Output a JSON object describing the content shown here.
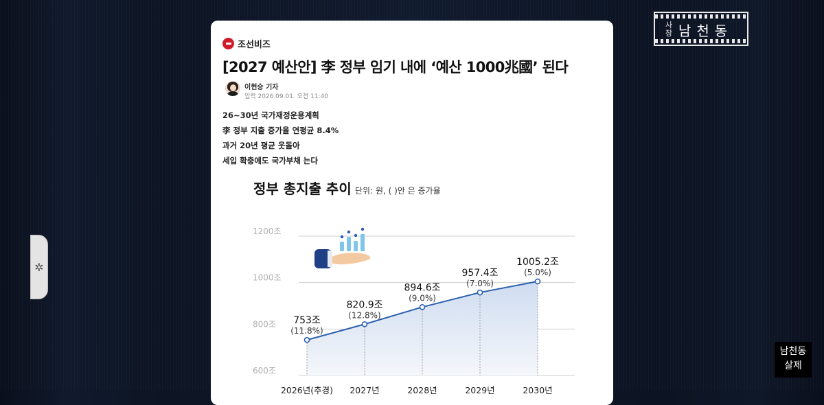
{
  "article": {
    "source": "조선비즈",
    "headline": "[2027 예산안] 李 정부 임기 내에 ‘예산 1000兆國’ 된다",
    "author": "이현승 기자",
    "date": "입력 2026.09.01. 오전 11:40",
    "summary": [
      "26~30년 국가재정운용계획",
      "李 정부 지출 증가율 연평균 8.4%",
      "과거 20년 평균 웃돌아",
      "세입 확충에도 국가부채 는다"
    ]
  },
  "overlay": {
    "logo_small": "사장",
    "logo_big": "남천동",
    "badge_line1": "남천동",
    "badge_line2": "살제"
  },
  "chart_data": {
    "type": "area",
    "title": "정부 총지출 추이",
    "subtitle": "단위: 원, (   )안 은 증가율",
    "categories": [
      "2026년(추경)",
      "2027년",
      "2028년",
      "2029년",
      "2030년"
    ],
    "series": [
      {
        "values": [
          753,
          820.9,
          894.6,
          957.4,
          1005.2
        ]
      }
    ],
    "value_labels": [
      "753조",
      "820.9조",
      "894.6조",
      "957.4조",
      "1005.2조"
    ],
    "growth_labels": [
      "(11.8%)",
      "(12.8%)",
      "(9.0%)",
      "(7.0%)",
      "(5.0%)"
    ],
    "ylim": [
      600,
      1200
    ],
    "yticks": [
      600,
      800,
      1000,
      1200
    ],
    "ytick_labels": [
      "600조",
      "800조",
      "1000조",
      "1200조"
    ],
    "grid": true,
    "colors": {
      "line": "#2b5fae",
      "fill": "#dbe6f4",
      "grid": "#cfcfcf"
    }
  }
}
